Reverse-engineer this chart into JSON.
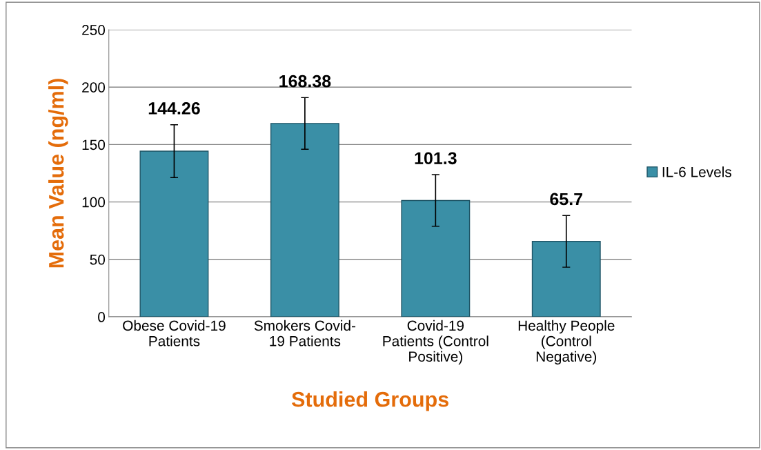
{
  "chart_data": {
    "type": "bar",
    "xlabel": "Studied Groups",
    "ylabel": "Mean Value (ng/ml)",
    "categories": [
      "Obese Covid-19\nPatients",
      "Smokers Covid-\n19 Patients",
      "Covid-19\nPatients (Control\nPositive)",
      "Healthy People\n(Control\nNegative)"
    ],
    "series": [
      {
        "name": "IL-6 Levels",
        "color": "#3a8fa6",
        "values": [
          144.26,
          168.38,
          101.3,
          65.7
        ],
        "errors": [
          23,
          22.5,
          22.5,
          22.5
        ]
      }
    ],
    "ylim": [
      0,
      250
    ],
    "yticks": [
      0,
      50,
      100,
      150,
      200,
      250
    ],
    "grid": "y",
    "legend": "right",
    "data_labels": true
  }
}
